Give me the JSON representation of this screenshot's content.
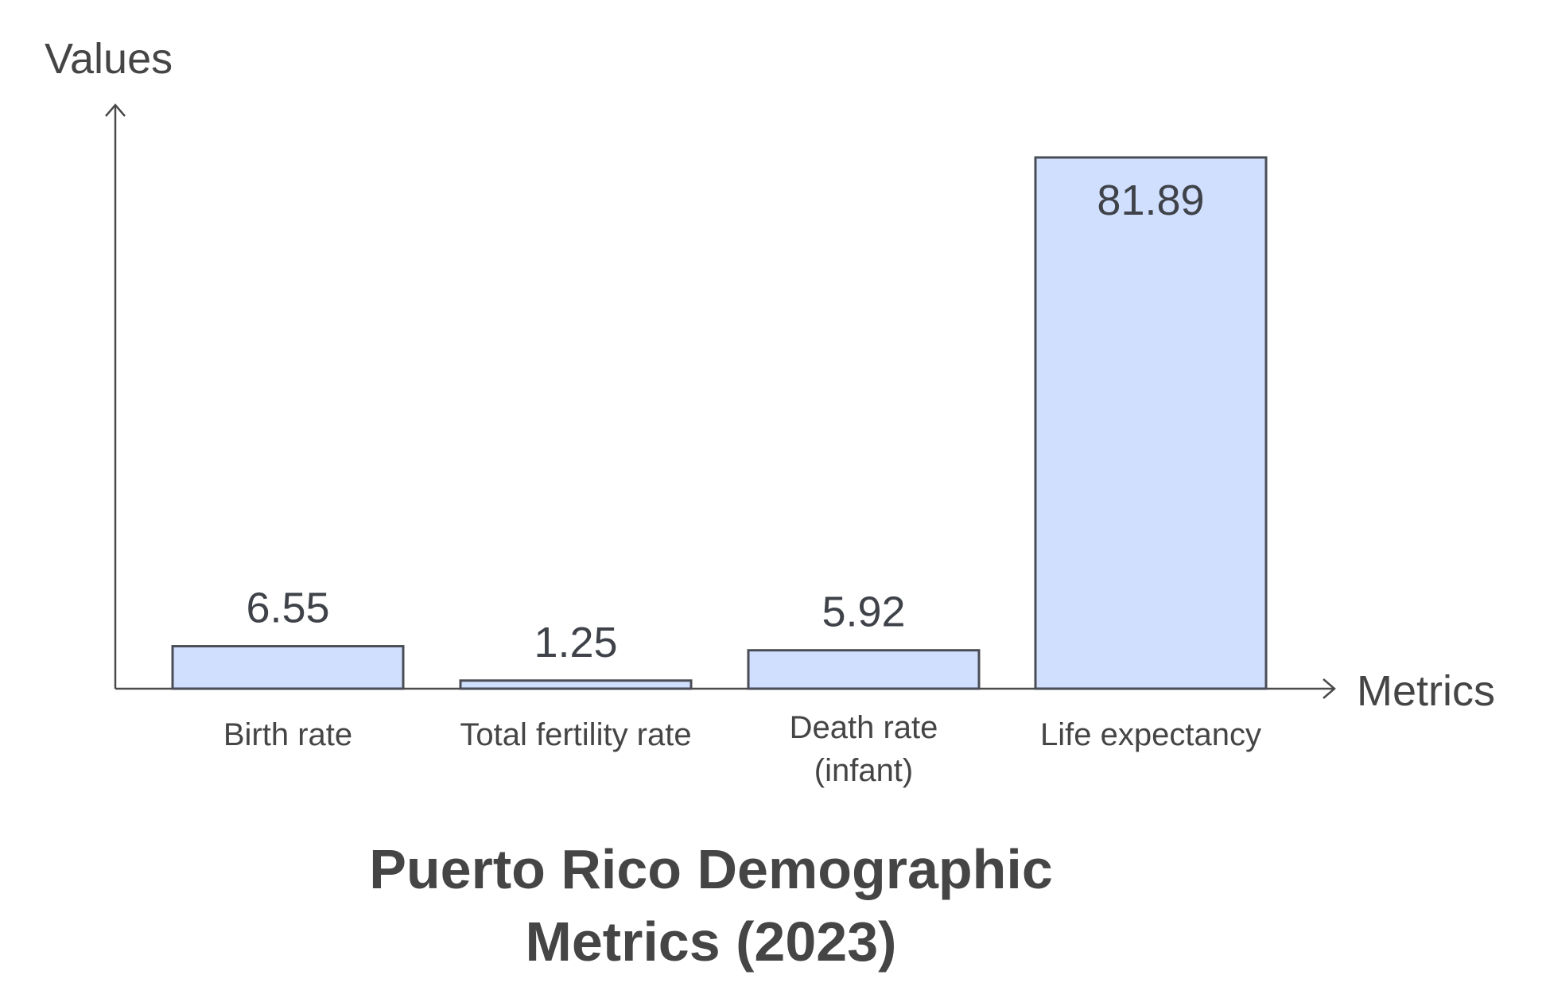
{
  "chart_data": {
    "type": "bar",
    "title": [
      "Puerto Rico Demographic",
      "Metrics (2023)"
    ],
    "xlabel": "Metrics",
    "ylabel": "Values",
    "categories": [
      [
        "Birth rate"
      ],
      [
        "Total fertility rate"
      ],
      [
        "Death rate",
        "(infant)"
      ],
      [
        "Life expectancy"
      ]
    ],
    "values": [
      6.55,
      1.25,
      5.92,
      81.89
    ],
    "value_labels": [
      "6.55",
      "1.25",
      "5.92",
      "81.89"
    ],
    "ylim": [
      0,
      88
    ],
    "grid": false,
    "colors": {
      "bar_fill": "#cfdffd",
      "bar_stroke": "#4a4d55",
      "text": "#454545"
    }
  }
}
